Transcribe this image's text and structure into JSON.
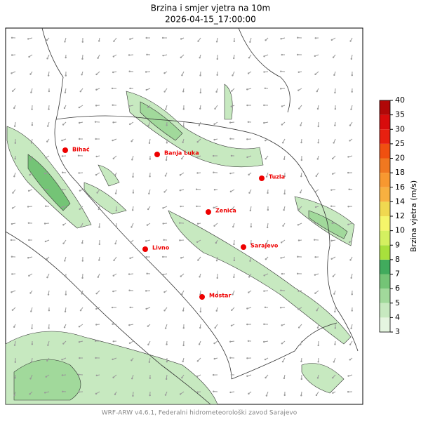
{
  "header": {
    "title": "Brzina i smjer vjetra na 10m",
    "subtitle": "2026-04-15_17:00:00"
  },
  "cities": [
    {
      "label": "Bihać"
    },
    {
      "label": "Banja Luka"
    },
    {
      "label": "Tuzla"
    },
    {
      "label": "Zenica"
    },
    {
      "label": "Livno"
    },
    {
      "label": "Sarajevo"
    },
    {
      "label": "Mostar"
    }
  ],
  "colorbar": {
    "label": "Brzina vjetra (m/s)",
    "ticks": [
      3,
      4,
      5,
      6,
      7,
      8,
      9,
      10,
      12,
      14,
      16,
      18,
      20,
      25,
      30,
      35,
      40
    ],
    "colors": [
      "#e5f5e0",
      "#c7e9c0",
      "#a1d99b",
      "#74c476",
      "#41ab5d",
      "#a8e03c",
      "#d4f060",
      "#f5f56a",
      "#f0d850",
      "#f8b040",
      "#f89830",
      "#f07820",
      "#f05010",
      "#e82010",
      "#d80c0c",
      "#b00808"
    ]
  },
  "footer": "WRF-ARW v4.6.1, Federalni hidrometeorološki zavod Sarajevo"
}
